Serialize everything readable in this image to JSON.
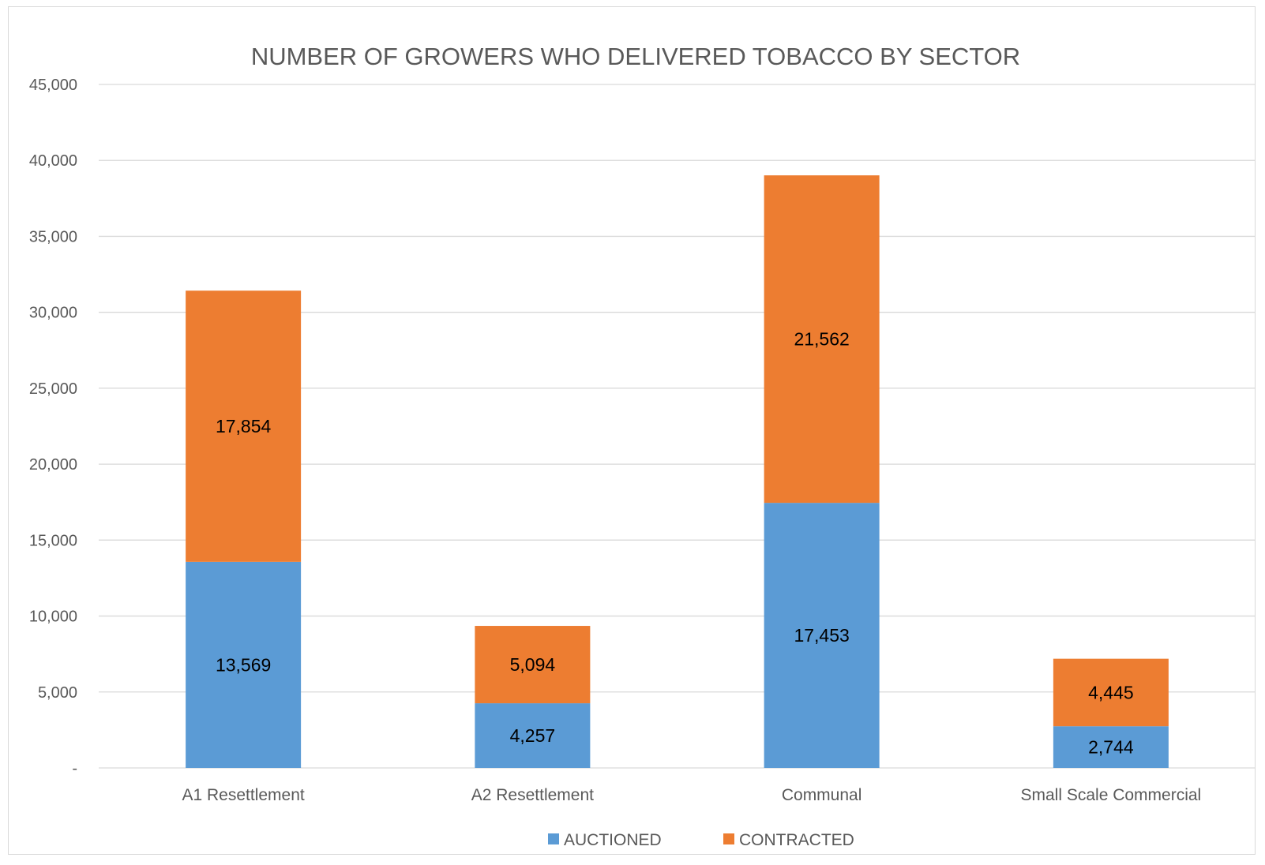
{
  "chart_data": {
    "type": "bar",
    "stacked": true,
    "title": "NUMBER OF GROWERS WHO DELIVERED TOBACCO BY SECTOR",
    "categories": [
      "A1 Resettlement",
      "A2 Resettlement",
      "Communal",
      "Small Scale Commercial"
    ],
    "series": [
      {
        "name": "AUCTIONED",
        "color": "#5b9bd5",
        "values": [
          13569,
          4257,
          17453,
          2744
        ],
        "labels": [
          "13,569",
          "4,257",
          "17,453",
          "2,744"
        ]
      },
      {
        "name": "CONTRACTED",
        "color": "#ed7d31",
        "values": [
          17854,
          5094,
          21562,
          4445
        ],
        "labels": [
          "17,854",
          "5,094",
          "21,562",
          "4,445"
        ]
      }
    ],
    "ylim": [
      0,
      45000
    ],
    "yticks": [
      0,
      5000,
      10000,
      15000,
      20000,
      25000,
      30000,
      35000,
      40000,
      45000
    ],
    "ytick_labels": [
      "-",
      "5,000",
      "10,000",
      "15,000",
      "20,000",
      "25,000",
      "30,000",
      "35,000",
      "40,000",
      "45,000"
    ],
    "grid": true,
    "legend_position": "bottom"
  }
}
